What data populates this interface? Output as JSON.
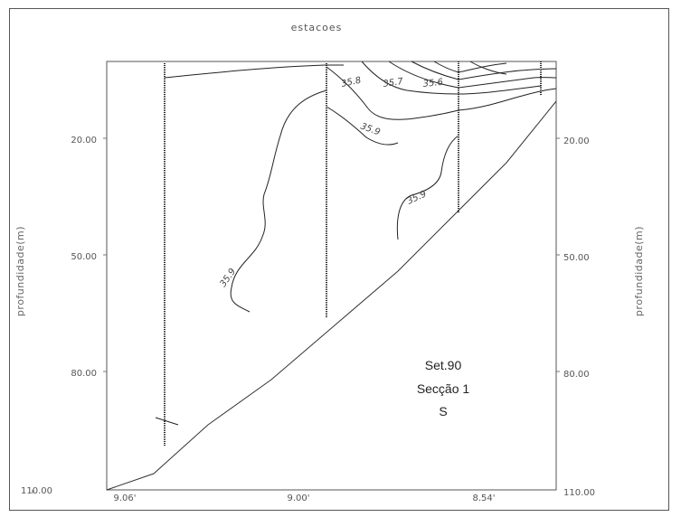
{
  "chart_data": {
    "type": "contour",
    "title": "estacoes",
    "ylabel_left": "profundidade(m)",
    "ylabel_right": "profundidade(m)",
    "y_ticks": [
      "20.00",
      "50.00",
      "80.00",
      "110.00"
    ],
    "x_ticks": [
      "9.06'",
      "9.00'",
      "8.54'"
    ],
    "annotations": [
      "Set.90",
      "Secção 1",
      "S"
    ],
    "contour_labels": [
      "35.8",
      "35.7",
      "35.6",
      "35.9",
      "35.9",
      "35.9"
    ],
    "stations": 4
  }
}
